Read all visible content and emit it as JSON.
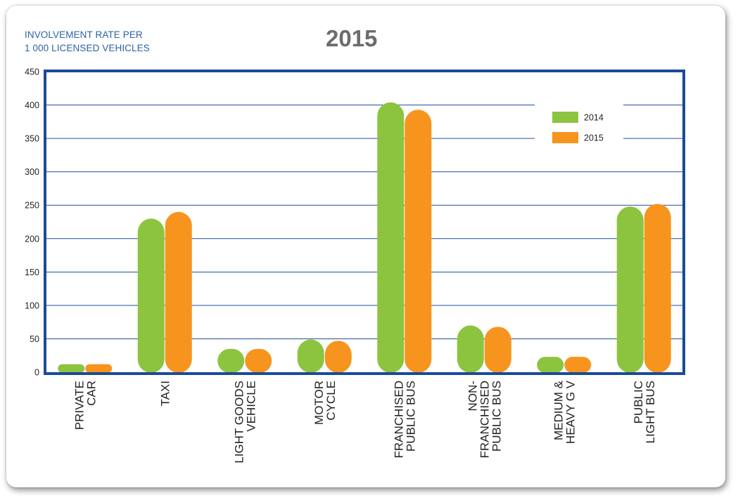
{
  "chart_data": {
    "type": "bar",
    "title": "2015",
    "ylabel_lines": [
      "INVOLVEMENT RATE PER",
      "1 000 LICENSED VEHICLES"
    ],
    "ylim": [
      0,
      450
    ],
    "yticks": [
      0,
      50,
      100,
      150,
      200,
      250,
      300,
      350,
      400,
      450
    ],
    "grid": true,
    "legend_position": "top-right",
    "categories": [
      [
        "PRIVATE",
        "CAR"
      ],
      [
        "TAXI"
      ],
      [
        "LIGHT GOODS",
        "VEHICLE"
      ],
      [
        "MOTOR",
        "CYCLE"
      ],
      [
        "FRANCHISED",
        "PUBLIC BUS"
      ],
      [
        "NON-",
        "FRANCHISED",
        "PUBLIC BUS"
      ],
      [
        "MEDIUM &",
        "HEAVY G V"
      ],
      [
        "PUBLIC",
        "LIGHT BUS"
      ]
    ],
    "series": [
      {
        "name": "2014",
        "color": "#8cc43f",
        "values": [
          12,
          230,
          35,
          49,
          404,
          70,
          23,
          248
        ]
      },
      {
        "name": "2015",
        "color": "#f7941d",
        "values": [
          12,
          240,
          35,
          47,
          393,
          68,
          23,
          252
        ]
      }
    ]
  },
  "colors": {
    "frame": "#1a4a99",
    "grid": "#1f4f9c",
    "axis_text": "#231f20",
    "title": "#6a6c6e",
    "ylabel": "#2a63a6"
  }
}
